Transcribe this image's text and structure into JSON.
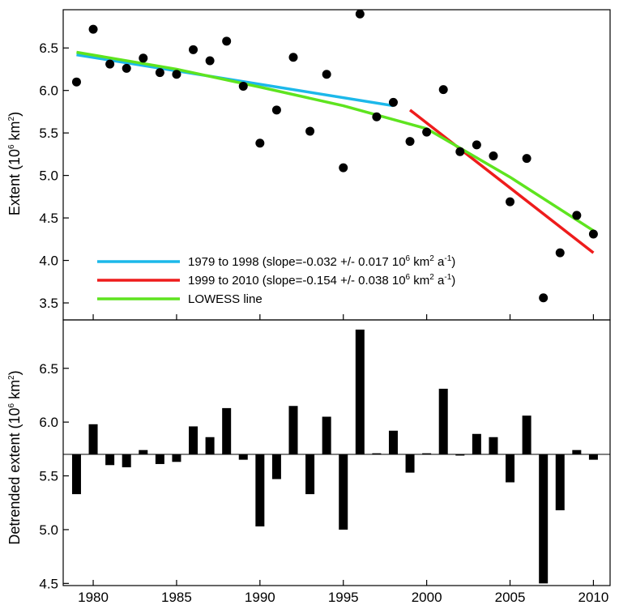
{
  "chart_data": [
    {
      "type": "scatter",
      "ylabel": {
        "base": "Extent (10",
        "sup": "6",
        "unit": " km",
        "sup2": "2",
        "close": ")"
      },
      "xlim": [
        1978.2,
        2011
      ],
      "ylim": [
        3.3,
        6.95
      ],
      "yticks": [
        "3.5",
        "4.0",
        "4.5",
        "5.0",
        "5.5",
        "6.0",
        "6.5"
      ],
      "x": [
        1979,
        1980,
        1981,
        1982,
        1983,
        1984,
        1985,
        1986,
        1987,
        1988,
        1989,
        1990,
        1991,
        1992,
        1993,
        1994,
        1995,
        1996,
        1997,
        1998,
        1999,
        2000,
        2001,
        2002,
        2003,
        2004,
        2005,
        2006,
        2007,
        2008,
        2009,
        2010
      ],
      "y": [
        6.1,
        6.72,
        6.31,
        6.26,
        6.38,
        6.21,
        6.19,
        6.48,
        6.35,
        6.58,
        6.05,
        5.38,
        5.77,
        6.39,
        5.52,
        6.19,
        5.09,
        6.9,
        5.69,
        5.86,
        5.4,
        5.51,
        6.01,
        5.28,
        5.36,
        5.23,
        4.69,
        5.2,
        3.56,
        4.09,
        4.53,
        4.31
      ],
      "lines": [
        {
          "name": "1979 to 1998",
          "color": "#1cb8ea",
          "x": [
            1979,
            1998
          ],
          "y": [
            6.42,
            5.82
          ]
        },
        {
          "name": "1999 to 2010",
          "color": "#ee1c1c",
          "x": [
            1999,
            2010
          ],
          "y": [
            5.77,
            4.09
          ]
        },
        {
          "name": "LOWESS line",
          "color": "#5ee41f",
          "x": [
            1979,
            1985,
            1990,
            1995,
            2000,
            2005,
            2010
          ],
          "y": [
            6.45,
            6.25,
            6.04,
            5.82,
            5.55,
            4.98,
            4.35
          ]
        }
      ],
      "legend": [
        {
          "color": "#1cb8ea",
          "pre": "1979 to 1998 (slope=-0.032 +/- 0.017 10",
          "sup1": "6",
          "mid": " km",
          "sup2": "2",
          "mid2": " a",
          "sup3": "-1",
          "post": ")"
        },
        {
          "color": "#ee1c1c",
          "pre": "1999 to 2010 (slope=-0.154 +/- 0.038 10",
          "sup1": "6",
          "mid": " km",
          "sup2": "2",
          "mid2": " a",
          "sup3": "-1",
          "post": ")"
        },
        {
          "color": "#5ee41f",
          "pre": "LOWESS line",
          "sup1": "",
          "mid": "",
          "sup2": "",
          "mid2": "",
          "sup3": "",
          "post": ""
        }
      ],
      "legend_placement": "bottom-left",
      "grid": false
    },
    {
      "type": "bar",
      "ylabel": {
        "base": "Detrended extent (10",
        "sup": "6",
        "unit": " km",
        "sup2": "2",
        "close": ")"
      },
      "xlim": [
        1978.2,
        2011
      ],
      "ylim": [
        4.48,
        6.95
      ],
      "baseline": 5.7,
      "yticks": [
        "4.5",
        "5.0",
        "5.5",
        "6.0",
        "6.5"
      ],
      "xticks": [
        "1980",
        "1985",
        "1990",
        "1995",
        "2000",
        "2005",
        "2010"
      ],
      "x": [
        1979,
        1980,
        1981,
        1982,
        1983,
        1984,
        1985,
        1986,
        1987,
        1988,
        1989,
        1990,
        1991,
        1992,
        1993,
        1994,
        1995,
        1996,
        1997,
        1998,
        1999,
        2000,
        2001,
        2002,
        2003,
        2004,
        2005,
        2006,
        2007,
        2008,
        2009,
        2010
      ],
      "values": [
        5.33,
        5.98,
        5.6,
        5.58,
        5.74,
        5.61,
        5.63,
        5.96,
        5.86,
        6.13,
        5.65,
        5.03,
        5.47,
        6.15,
        5.33,
        6.05,
        5.0,
        6.86,
        5.71,
        5.92,
        5.53,
        5.71,
        6.31,
        5.69,
        5.89,
        5.86,
        5.44,
        6.06,
        4.5,
        5.18,
        5.74,
        5.65
      ],
      "grid": false
    }
  ]
}
